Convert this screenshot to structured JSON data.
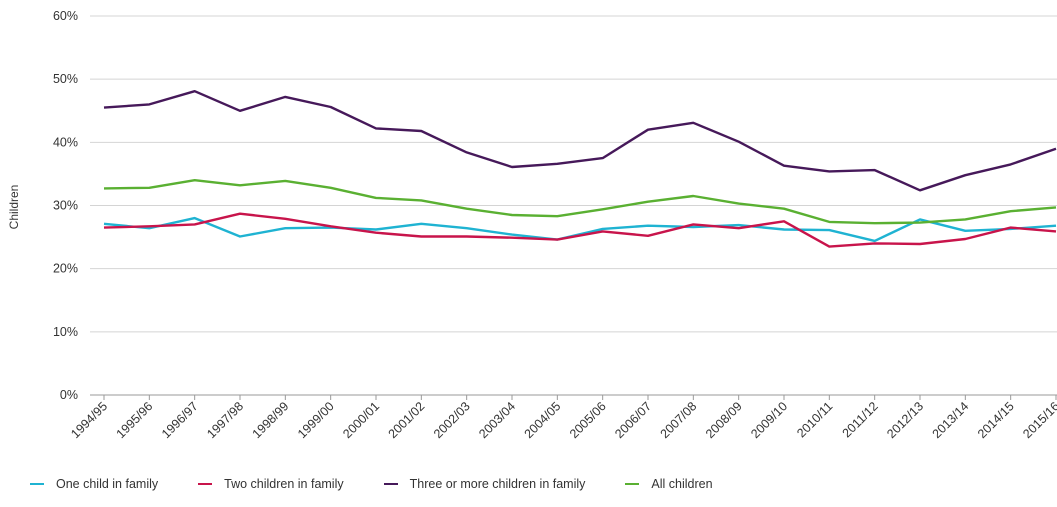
{
  "chart_data": {
    "type": "line",
    "ylabel": "Children",
    "ylim": [
      0,
      60
    ],
    "yticks": [
      "0%",
      "10%",
      "20%",
      "30%",
      "40%",
      "50%",
      "60%"
    ],
    "grid": true,
    "legend_position": "bottom",
    "categories": [
      "1994/95",
      "1995/96",
      "1996/97",
      "1997/98",
      "1998/99",
      "1999/00",
      "2000/01",
      "2001/02",
      "2002/03",
      "2003/04",
      "2004/05",
      "2005/06",
      "2006/07",
      "2007/08",
      "2008/09",
      "2009/10",
      "2010/11",
      "2011/12",
      "2012/13",
      "2013/14",
      "2014/15",
      "2015/16"
    ],
    "series": [
      {
        "name": "One child in family",
        "color": "#1fb3d2",
        "values": [
          27.1,
          26.4,
          28.0,
          25.1,
          26.4,
          26.5,
          26.2,
          27.1,
          26.4,
          25.4,
          24.6,
          26.3,
          26.8,
          26.6,
          26.9,
          26.2,
          26.1,
          24.4,
          27.8,
          26.0,
          26.3,
          26.8
        ]
      },
      {
        "name": "Two children in family",
        "color": "#c8144b",
        "values": [
          26.5,
          26.7,
          27.0,
          28.7,
          27.9,
          26.7,
          25.7,
          25.1,
          25.1,
          24.9,
          24.6,
          25.9,
          25.2,
          27.0,
          26.4,
          27.5,
          23.5,
          24.0,
          23.9,
          24.7,
          26.5,
          25.9
        ]
      },
      {
        "name": "Three or more children in family",
        "color": "#46195a",
        "values": [
          45.5,
          46.0,
          48.1,
          45.0,
          47.2,
          45.6,
          42.2,
          41.8,
          38.4,
          36.1,
          36.6,
          37.5,
          42.0,
          43.1,
          40.1,
          36.3,
          35.4,
          35.6,
          32.4,
          34.8,
          36.5,
          39.0
        ]
      },
      {
        "name": "All children",
        "color": "#5ab032",
        "values": [
          32.7,
          32.8,
          34.0,
          33.2,
          33.9,
          32.8,
          31.2,
          30.8,
          29.5,
          28.5,
          28.3,
          29.4,
          30.6,
          31.5,
          30.3,
          29.5,
          27.4,
          27.2,
          27.3,
          27.8,
          29.1,
          29.7
        ]
      }
    ]
  }
}
